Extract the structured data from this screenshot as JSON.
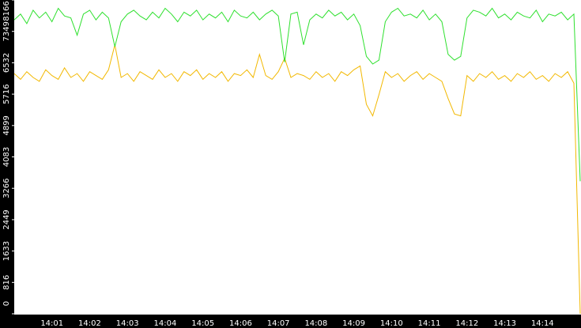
{
  "chart_data": {
    "type": "line",
    "categories": [
      null,
      null,
      null,
      null,
      null,
      null,
      "14:01",
      null,
      null,
      null,
      null,
      null,
      "14:02",
      null,
      null,
      null,
      null,
      null,
      "14:03",
      null,
      null,
      null,
      null,
      null,
      "14:04",
      null,
      null,
      null,
      null,
      null,
      "14:05",
      null,
      null,
      null,
      null,
      null,
      "14:06",
      null,
      null,
      null,
      null,
      null,
      "14:07",
      null,
      null,
      null,
      null,
      null,
      "14:08",
      null,
      null,
      null,
      null,
      null,
      "14:09",
      null,
      null,
      null,
      null,
      null,
      "14:10",
      null,
      null,
      null,
      null,
      null,
      "14:11",
      null,
      null,
      null,
      null,
      null,
      "14:12",
      null,
      null,
      null,
      null,
      null,
      "14:13",
      null,
      null,
      null,
      null,
      null,
      "14:14",
      null,
      null,
      null,
      null,
      null,
      null
    ],
    "series": [
      {
        "color": "#2ee02e",
        "values": [
          7650,
          7800,
          7550,
          7900,
          7700,
          7850,
          7600,
          7950,
          7750,
          7700,
          7250,
          7800,
          7900,
          7650,
          7850,
          7700,
          6950,
          7600,
          7800,
          7900,
          7750,
          7650,
          7850,
          7700,
          7950,
          7800,
          7600,
          7850,
          7750,
          7900,
          7650,
          7800,
          7700,
          7850,
          7600,
          7900,
          7750,
          7700,
          7850,
          7650,
          7800,
          7900,
          7750,
          6550,
          7800,
          7850,
          7000,
          7650,
          7800,
          7700,
          7900,
          7750,
          7850,
          7650,
          7800,
          7500,
          6700,
          6500,
          6600,
          7600,
          7850,
          7950,
          7750,
          7800,
          7700,
          7900,
          7650,
          7800,
          7600,
          6750,
          6600,
          6700,
          7700,
          7900,
          7850,
          7750,
          7950,
          7700,
          7800,
          7650,
          7850,
          7750,
          7700,
          7900,
          7600,
          7800,
          7750,
          7850,
          7650,
          7800,
          3450
        ]
      },
      {
        "color": "#f2b800",
        "values": [
          6250,
          6100,
          6300,
          6150,
          6050,
          6350,
          6200,
          6100,
          6400,
          6150,
          6250,
          6050,
          6300,
          6200,
          6100,
          6350,
          7000,
          6150,
          6250,
          6050,
          6300,
          6200,
          6100,
          6350,
          6150,
          6250,
          6050,
          6300,
          6200,
          6350,
          6100,
          6250,
          6150,
          6300,
          6050,
          6250,
          6200,
          6350,
          6150,
          6750,
          6200,
          6100,
          6300,
          6650,
          6150,
          6250,
          6200,
          6100,
          6300,
          6150,
          6250,
          6050,
          6300,
          6200,
          6350,
          6450,
          5450,
          5150,
          5700,
          6300,
          6150,
          6250,
          6050,
          6200,
          6300,
          6100,
          6250,
          6150,
          6050,
          5600,
          5200,
          5150,
          6200,
          6050,
          6250,
          6150,
          6300,
          6100,
          6200,
          6050,
          6250,
          6150,
          6300,
          6100,
          6200,
          6050,
          6250,
          6150,
          6300,
          6000,
          0
        ]
      }
    ],
    "ylim": [
      0,
      8166
    ],
    "yticks": [
      0,
      816,
      1633,
      2449,
      3266,
      4083,
      4899,
      5716,
      6532,
      7349,
      8166
    ]
  }
}
